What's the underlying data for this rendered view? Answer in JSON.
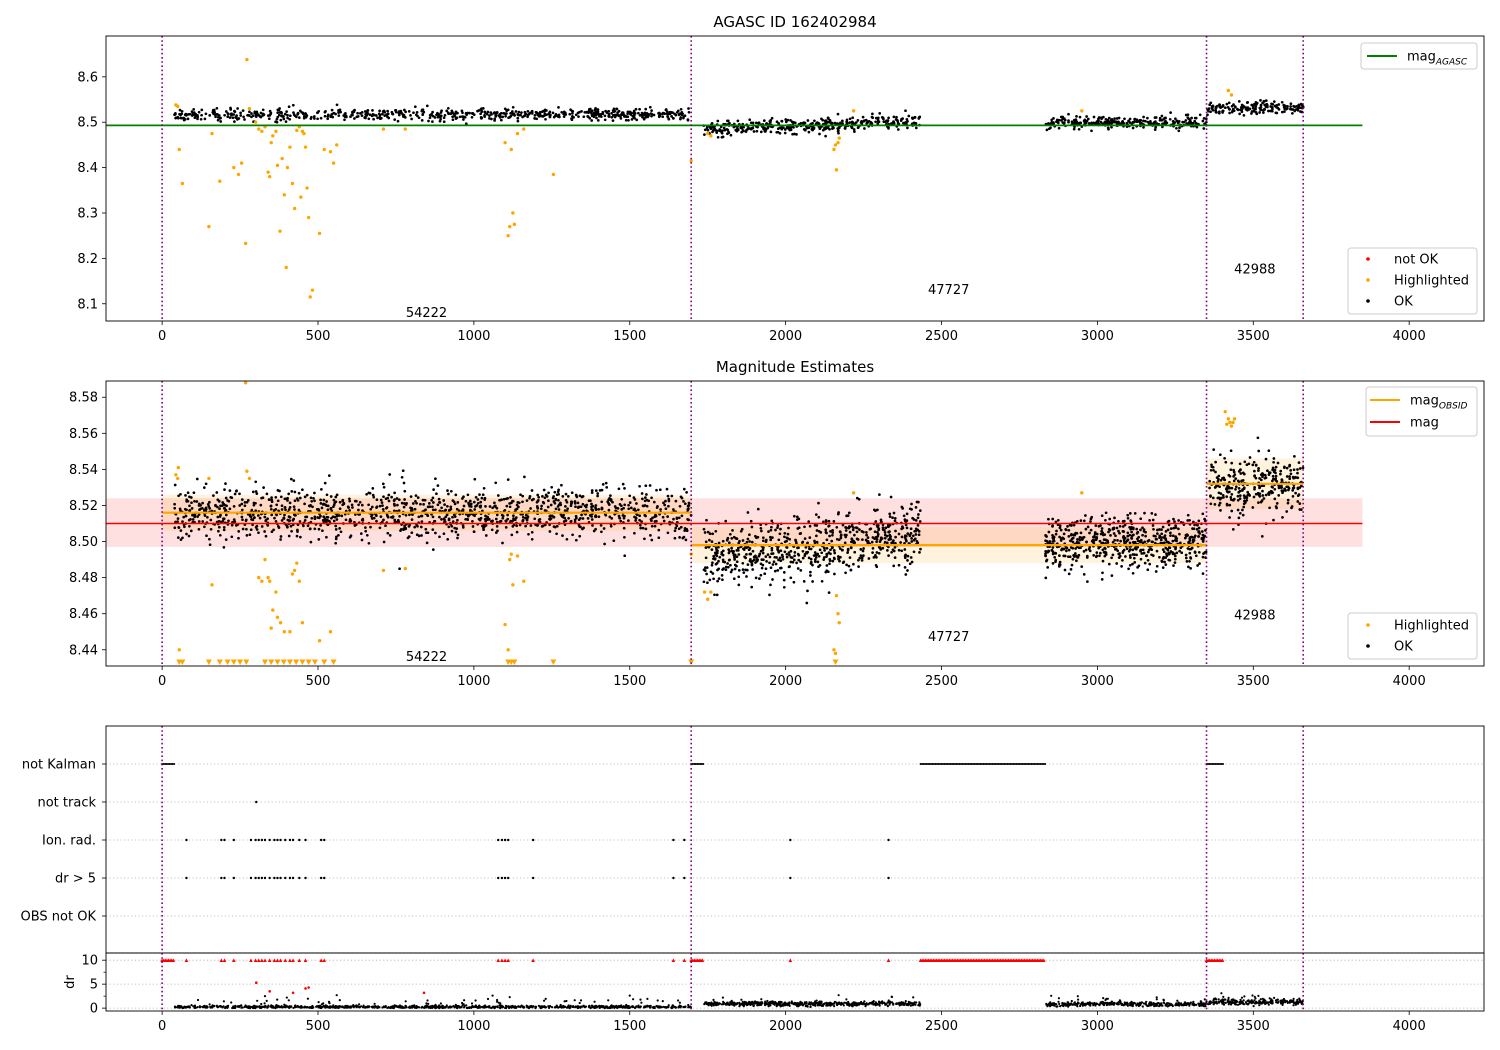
{
  "chart_data": [
    {
      "type": "scatter",
      "title": "AGASC ID 162402984",
      "xlim": [
        -180,
        4240
      ],
      "ylim": [
        8.062,
        8.69
      ],
      "xticks": [
        0,
        500,
        1000,
        1500,
        2000,
        2500,
        3000,
        3500,
        4000
      ],
      "yticks": [
        8.1,
        8.2,
        8.3,
        8.4,
        8.5,
        8.6
      ],
      "vlines": [
        0,
        1697,
        3350,
        3660
      ],
      "obsid_labels": [
        {
          "text": "54222",
          "x": 848,
          "y": 8.08
        },
        {
          "text": "47727",
          "x": 2523,
          "y": 8.13
        },
        {
          "text": "42988",
          "x": 3505,
          "y": 8.175
        }
      ],
      "mag_line": {
        "name": "mag",
        "subscript": "AGASC",
        "value": 8.493,
        "x": [
          -180,
          3850
        ],
        "color": "#008000"
      },
      "legend_lines": [
        {
          "label": "mag",
          "subscript": "AGASC",
          "color": "#008000"
        }
      ],
      "legend_points": [
        {
          "label": "not OK",
          "color": "#ff0000"
        },
        {
          "label": "Highlighted",
          "color": "#ffa500"
        },
        {
          "label": "OK",
          "color": "#000000"
        }
      ],
      "segments": [
        {
          "x": [
            40,
            1697
          ],
          "center": 8.517,
          "spread": 0.0065,
          "n": 680
        },
        {
          "x": [
            1737,
            2433
          ],
          "center": 8.493,
          "spread": 0.008,
          "n": 380,
          "trend": 0.015
        },
        {
          "x": [
            2833,
            3350
          ],
          "center": 8.499,
          "spread": 0.0065,
          "n": 300
        },
        {
          "x": [
            3353,
            3660
          ],
          "center": 8.532,
          "spread": 0.007,
          "n": 170
        }
      ],
      "highlighted": [
        [
          44,
          8.538
        ],
        [
          50,
          8.535
        ],
        [
          55,
          8.44
        ],
        [
          65,
          8.365
        ],
        [
          150,
          8.27
        ],
        [
          160,
          8.475
        ],
        [
          185,
          8.37
        ],
        [
          230,
          8.4
        ],
        [
          245,
          8.385
        ],
        [
          255,
          8.41
        ],
        [
          268,
          8.233
        ],
        [
          272,
          8.638
        ],
        [
          280,
          8.53
        ],
        [
          300,
          8.5
        ],
        [
          310,
          8.485
        ],
        [
          320,
          8.48
        ],
        [
          330,
          8.49
        ],
        [
          340,
          8.39
        ],
        [
          345,
          8.38
        ],
        [
          350,
          8.455
        ],
        [
          355,
          8.47
        ],
        [
          365,
          8.48
        ],
        [
          370,
          8.405
        ],
        [
          378,
          8.26
        ],
        [
          385,
          8.42
        ],
        [
          392,
          8.34
        ],
        [
          398,
          8.18
        ],
        [
          402,
          8.4
        ],
        [
          410,
          8.445
        ],
        [
          418,
          8.365
        ],
        [
          425,
          8.31
        ],
        [
          432,
          8.482
        ],
        [
          440,
          8.49
        ],
        [
          445,
          8.335
        ],
        [
          450,
          8.48
        ],
        [
          455,
          8.475
        ],
        [
          460,
          8.445
        ],
        [
          465,
          8.355
        ],
        [
          470,
          8.29
        ],
        [
          475,
          8.115
        ],
        [
          482,
          8.13
        ],
        [
          505,
          8.255
        ],
        [
          520,
          8.44
        ],
        [
          540,
          8.435
        ],
        [
          550,
          8.41
        ],
        [
          560,
          8.45
        ],
        [
          710,
          8.485
        ],
        [
          780,
          8.485
        ],
        [
          1100,
          8.455
        ],
        [
          1110,
          8.25
        ],
        [
          1115,
          8.27
        ],
        [
          1120,
          8.44
        ],
        [
          1125,
          8.3
        ],
        [
          1130,
          8.275
        ],
        [
          1140,
          8.475
        ],
        [
          1160,
          8.485
        ],
        [
          1255,
          8.385
        ],
        [
          1697,
          8.415
        ],
        [
          1750,
          8.475
        ],
        [
          1760,
          8.47
        ],
        [
          2155,
          8.44
        ],
        [
          2160,
          8.45
        ],
        [
          2163,
          8.395
        ],
        [
          2168,
          8.455
        ],
        [
          2172,
          8.465
        ],
        [
          2218,
          8.525
        ],
        [
          2950,
          8.525
        ],
        [
          3420,
          8.57
        ],
        [
          3430,
          8.56
        ]
      ],
      "notok": []
    },
    {
      "type": "scatter",
      "title": "Magnitude Estimates",
      "xlim": [
        -180,
        4240
      ],
      "ylim": [
        8.431,
        8.589
      ],
      "xticks": [
        0,
        500,
        1000,
        1500,
        2000,
        2500,
        3000,
        3500,
        4000
      ],
      "yticks": [
        8.44,
        8.46,
        8.48,
        8.5,
        8.52,
        8.54,
        8.56,
        8.58
      ],
      "vlines": [
        0,
        1697,
        3350,
        3660
      ],
      "obsid_labels": [
        {
          "text": "54222",
          "x": 848,
          "y": 8.436
        },
        {
          "text": "47727",
          "x": 2523,
          "y": 8.447
        },
        {
          "text": "42988",
          "x": 3505,
          "y": 8.459
        }
      ],
      "mag_line": {
        "name": "mag",
        "value": 8.51,
        "band": [
          8.497,
          8.524
        ],
        "x": [
          -180,
          3850
        ],
        "color": "#ff0000"
      },
      "obsid_mags": [
        {
          "x": [
            0,
            1697
          ],
          "value": 8.516,
          "band": [
            8.506,
            8.526
          ]
        },
        {
          "x": [
            1697,
            3350
          ],
          "value": 8.498,
          "band": [
            8.488,
            8.508
          ]
        },
        {
          "x": [
            3350,
            3660
          ],
          "value": 8.532,
          "band": [
            8.518,
            8.546
          ]
        }
      ],
      "legend_lines": [
        {
          "label": "mag",
          "subscript": "OBSID",
          "color": "#ffa500"
        },
        {
          "label": "mag",
          "color": "#ff0000"
        }
      ],
      "legend_points": [
        {
          "label": "Highlighted",
          "color": "#ffa500"
        },
        {
          "label": "OK",
          "color": "#000000"
        }
      ],
      "segments": [
        {
          "x": [
            40,
            1697
          ],
          "center": 8.516,
          "spread": 0.007,
          "n": 1300
        },
        {
          "x": [
            1737,
            2433
          ],
          "center": 8.497,
          "spread": 0.009,
          "n": 700,
          "trend": 0.015
        },
        {
          "x": [
            2833,
            3350
          ],
          "center": 8.499,
          "spread": 0.007,
          "n": 600
        },
        {
          "x": [
            3353,
            3660
          ],
          "center": 8.531,
          "spread": 0.008,
          "n": 300
        }
      ],
      "highlighted": [
        [
          44,
          8.537
        ],
        [
          50,
          8.535
        ],
        [
          52,
          8.541
        ],
        [
          55,
          8.44
        ],
        [
          150,
          8.535
        ],
        [
          160,
          8.476
        ],
        [
          268,
          8.588
        ],
        [
          272,
          8.539
        ],
        [
          280,
          8.535
        ],
        [
          310,
          8.48
        ],
        [
          320,
          8.478
        ],
        [
          330,
          8.49
        ],
        [
          340,
          8.48
        ],
        [
          345,
          8.478
        ],
        [
          350,
          8.452
        ],
        [
          355,
          8.462
        ],
        [
          365,
          8.472
        ],
        [
          370,
          8.458
        ],
        [
          380,
          8.455
        ],
        [
          392,
          8.45
        ],
        [
          410,
          8.45
        ],
        [
          418,
          8.482
        ],
        [
          425,
          8.484
        ],
        [
          432,
          8.488
        ],
        [
          440,
          8.478
        ],
        [
          450,
          8.455
        ],
        [
          505,
          8.445
        ],
        [
          540,
          8.45
        ],
        [
          710,
          8.484
        ],
        [
          780,
          8.485
        ],
        [
          1100,
          8.454
        ],
        [
          1110,
          8.44
        ],
        [
          1115,
          8.49
        ],
        [
          1120,
          8.493
        ],
        [
          1125,
          8.476
        ],
        [
          1140,
          8.492
        ],
        [
          1160,
          8.478
        ],
        [
          1697,
          8.493
        ],
        [
          1740,
          8.472
        ],
        [
          1750,
          8.468
        ],
        [
          1760,
          8.472
        ],
        [
          2155,
          8.44
        ],
        [
          2160,
          8.438
        ],
        [
          2163,
          8.47
        ],
        [
          2168,
          8.46
        ],
        [
          2172,
          8.455
        ],
        [
          2218,
          8.527
        ],
        [
          2950,
          8.527
        ],
        [
          3410,
          8.572
        ],
        [
          3415,
          8.565
        ],
        [
          3420,
          8.568
        ],
        [
          3425,
          8.566
        ],
        [
          3430,
          8.564
        ],
        [
          3435,
          8.566
        ],
        [
          3440,
          8.568
        ]
      ],
      "lower_limits": [
        55,
        65,
        150,
        185,
        210,
        230,
        250,
        270,
        330,
        350,
        370,
        390,
        410,
        430,
        450,
        470,
        490,
        520,
        550,
        1110,
        1120,
        1130,
        1255,
        1697,
        2160
      ],
      "notok": []
    },
    {
      "type": "scatter",
      "title": "",
      "xlim": [
        -180,
        4240
      ],
      "categories": [
        "not Kalman",
        "not track",
        "Ion. rad.",
        "dr > 5",
        "OBS not OK"
      ],
      "flags": {
        "not Kalman": {
          "ranges": [
            [
              0,
              40
            ],
            [
              1697,
              1737
            ],
            [
              2433,
              2833
            ],
            [
              3350,
              3405
            ]
          ],
          "points": []
        },
        "not track": {
          "ranges": [],
          "points": [
            302
          ]
        },
        "Ion. rad.": {
          "ranges": [],
          "points": [
            78,
            190,
            200,
            230,
            285,
            300,
            310,
            320,
            330,
            345,
            360,
            370,
            380,
            395,
            410,
            420,
            440,
            460,
            510,
            520,
            1078,
            1090,
            1100,
            1110,
            1190,
            1640,
            1675,
            2015,
            2330
          ]
        },
        "dr > 5": {
          "ranges": [],
          "points": [
            78,
            190,
            200,
            230,
            285,
            300,
            310,
            320,
            330,
            345,
            360,
            370,
            380,
            395,
            410,
            420,
            440,
            460,
            510,
            520,
            1078,
            1090,
            1100,
            1110,
            1190,
            1640,
            1675,
            2015,
            2330
          ]
        },
        "OBS not OK": {
          "ranges": [],
          "points": []
        }
      },
      "vlines": [
        0,
        1697,
        3350,
        3660
      ]
    },
    {
      "type": "scatter",
      "title": "",
      "ylabel": "dr",
      "xlim": [
        -180,
        4240
      ],
      "ylim": [
        -0.6,
        11.5
      ],
      "xticks": [
        0,
        500,
        1000,
        1500,
        2000,
        2500,
        3000,
        3500,
        4000
      ],
      "yticks": [
        0,
        5,
        10
      ],
      "vlines": [
        0,
        1697,
        3350,
        3660
      ],
      "segments": [
        {
          "x": [
            40,
            1697
          ],
          "center": 0.25,
          "spread": 0.25,
          "n": 950
        },
        {
          "x": [
            1737,
            2433
          ],
          "center": 0.9,
          "spread": 0.4,
          "n": 520
        },
        {
          "x": [
            2833,
            3350
          ],
          "center": 0.8,
          "spread": 0.35,
          "n": 380
        },
        {
          "x": [
            3353,
            3660
          ],
          "center": 1.3,
          "spread": 0.5,
          "n": 220
        }
      ],
      "capped_red": {
        "value": 10,
        "ranges": [
          [
            0,
            40
          ],
          [
            1697,
            1737
          ],
          [
            2433,
            2833
          ],
          [
            3350,
            3405
          ]
        ],
        "points": [
          78,
          190,
          200,
          230,
          285,
          300,
          310,
          320,
          330,
          345,
          360,
          370,
          380,
          395,
          410,
          420,
          440,
          460,
          510,
          520,
          1078,
          1090,
          1100,
          1110,
          1190,
          1640,
          1675,
          2015,
          2330
        ]
      },
      "red_points": [
        [
          302,
          5.3
        ],
        [
          345,
          3.5
        ],
        [
          420,
          3.2
        ],
        [
          460,
          4.1
        ],
        [
          470,
          4.3
        ],
        [
          840,
          3.2
        ]
      ],
      "scatter_points": [
        [
          330,
          2.5
        ],
        [
          400,
          2.2
        ],
        [
          560,
          2.7
        ],
        [
          1060,
          2.6
        ],
        [
          1115,
          2.3
        ],
        [
          1500,
          2.6
        ],
        [
          2170,
          2.7
        ],
        [
          3420,
          1.8
        ]
      ]
    }
  ]
}
